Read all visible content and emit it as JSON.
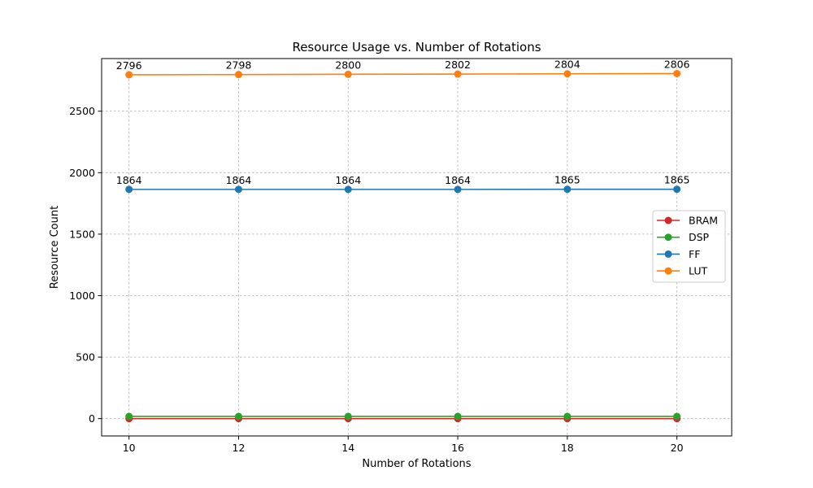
{
  "chart_data": {
    "type": "line",
    "title": "Resource Usage vs. Number of Rotations",
    "xlabel": "Number of Rotations",
    "ylabel": "Resource Count",
    "x": [
      10,
      12,
      14,
      16,
      18,
      20
    ],
    "xlim": [
      9.5,
      21
    ],
    "ylim": [
      -141,
      2928
    ],
    "xticks": [
      10,
      12,
      14,
      16,
      18,
      20
    ],
    "yticks": [
      0,
      500,
      1000,
      1500,
      2000,
      2500
    ],
    "grid": true,
    "legend_position": "center-right",
    "series": [
      {
        "name": "BRAM",
        "color": "#d62728",
        "values": [
          0,
          0,
          0,
          0,
          0,
          0
        ],
        "show_labels": false
      },
      {
        "name": "DSP",
        "color": "#2ca02c",
        "values": [
          18,
          18,
          18,
          18,
          18,
          18
        ],
        "show_labels": false
      },
      {
        "name": "FF",
        "color": "#1f77b4",
        "values": [
          1864,
          1864,
          1864,
          1864,
          1865,
          1865
        ],
        "show_labels": true
      },
      {
        "name": "LUT",
        "color": "#ff7f0e",
        "values": [
          2796,
          2798,
          2800,
          2802,
          2804,
          2806
        ],
        "show_labels": true
      }
    ]
  }
}
